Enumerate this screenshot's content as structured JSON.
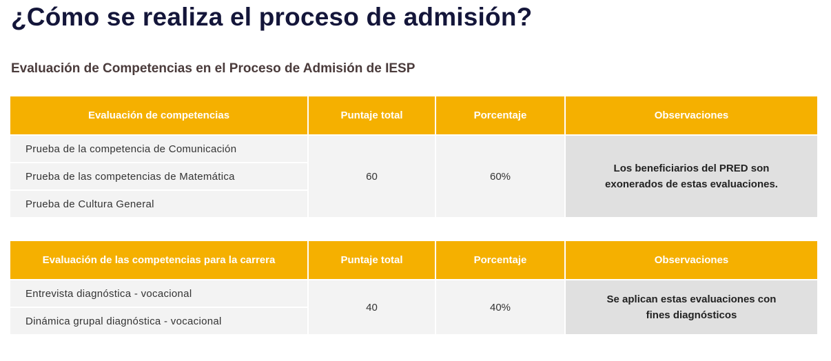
{
  "page": {
    "title": "¿Cómo se realiza el proceso de admisión?",
    "subtitle": "Evaluación de Competencias en el Proceso de Admisión de IESP"
  },
  "colors": {
    "header_bg": "#f5b000",
    "title_text": "#14163a",
    "cell_bg": "#f3f3f3",
    "observation_bg": "#e0e0e0"
  },
  "tables": [
    {
      "headers": [
        "Evaluación de competencias",
        "Puntaje total",
        "Porcentaje",
        "Observaciones"
      ],
      "items": [
        "Prueba de la competencia de Comunicación",
        "Prueba de las competencias de Matemática",
        "Prueba de Cultura General"
      ],
      "score": "60",
      "percent": "60%",
      "observation": "Los beneficiarios del PRED son\nexonerados de estas evaluaciones."
    },
    {
      "headers": [
        "Evaluación de las competencias para la carrera",
        "Puntaje total",
        "Porcentaje",
        "Observaciones"
      ],
      "items": [
        "Entrevista diagnóstica - vocacional",
        "Dinámica grupal diagnóstica - vocacional"
      ],
      "score": "40",
      "percent": "40%",
      "observation": "Se aplican estas evaluaciones con\nfines diagnósticos"
    }
  ]
}
